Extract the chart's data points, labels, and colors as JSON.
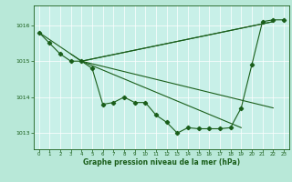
{
  "fig_bg": "#b8e8d8",
  "ax_bg": "#c8f0e8",
  "line_color": "#1a5e1a",
  "xlim": [
    -0.5,
    23.5
  ],
  "ylim": [
    1012.55,
    1016.55
  ],
  "yticks": [
    1013,
    1014,
    1015,
    1016
  ],
  "xlabel": "Graphe pression niveau de la mer (hPa)",
  "main_x": [
    0,
    1,
    2,
    3,
    4,
    5,
    6,
    7,
    8,
    9,
    10,
    11,
    12,
    13,
    14,
    15,
    16,
    17,
    18,
    19,
    20,
    21,
    22,
    23
  ],
  "main_y": [
    1015.8,
    1015.5,
    1015.2,
    1015.0,
    1015.0,
    1014.8,
    1013.8,
    1013.85,
    1014.0,
    1013.85,
    1013.85,
    1013.5,
    1013.3,
    1013.0,
    1013.15,
    1013.12,
    1013.12,
    1013.12,
    1013.15,
    1013.7,
    1014.9,
    1016.1,
    1016.15,
    1016.15
  ],
  "fan_lines": [
    {
      "x": [
        0,
        4,
        22
      ],
      "y": [
        1015.8,
        1015.0,
        1016.1
      ]
    },
    {
      "x": [
        3,
        4,
        22
      ],
      "y": [
        1015.2,
        1015.0,
        1016.1
      ]
    },
    {
      "x": [
        4,
        22
      ],
      "y": [
        1015.0,
        1013.7
      ]
    },
    {
      "x": [
        4,
        19
      ],
      "y": [
        1015.0,
        1013.15
      ]
    }
  ]
}
